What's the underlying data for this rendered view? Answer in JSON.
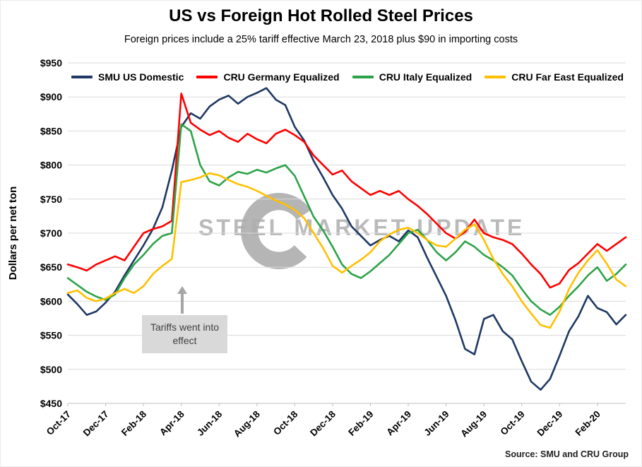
{
  "header": {
    "title": "US vs Foreign Hot Rolled Steel Prices",
    "subtitle": "Foreign prices include a 25% tariff effective March 23, 2018 plus $90 in importing costs"
  },
  "annotation": {
    "text": "Tariffs went into effect"
  },
  "watermark": {
    "text": "STEEL MARKET UPDATE",
    "logo": "crescent-globe-logo"
  },
  "source": {
    "text": "Source: SMU and CRU Group"
  },
  "chart_data": {
    "type": "line",
    "title": "US vs Foreign Hot Rolled Steel Prices",
    "ylabel": "Dollars per net ton",
    "xlabel": "",
    "ylim": [
      450,
      950
    ],
    "ytick_step": 50,
    "ytick_prefix": "$",
    "grid": "horizontal",
    "legend_position": "top-inside",
    "x_unit": "months since Oct-2017, sampled every half month",
    "x_start_month": 0,
    "x_step_months": 0.5,
    "x_end_month": 29.5,
    "xticks": [
      {
        "label": "Oct-17",
        "month": 0
      },
      {
        "label": "Dec-17",
        "month": 2
      },
      {
        "label": "Feb-18",
        "month": 4
      },
      {
        "label": "Apr-18",
        "month": 6
      },
      {
        "label": "Jun-18",
        "month": 8
      },
      {
        "label": "Aug-18",
        "month": 10
      },
      {
        "label": "Oct-18",
        "month": 12
      },
      {
        "label": "Dec-18",
        "month": 14
      },
      {
        "label": "Feb-19",
        "month": 16
      },
      {
        "label": "Apr-19",
        "month": 18
      },
      {
        "label": "Jun-19",
        "month": 20
      },
      {
        "label": "Aug-19",
        "month": 22
      },
      {
        "label": "Oct-19",
        "month": 24
      },
      {
        "label": "Dec-19",
        "month": 26
      },
      {
        "label": "Feb-20",
        "month": 28
      }
    ],
    "series": [
      {
        "name": "SMU US Domestic",
        "color": "#1F3864",
        "values": [
          610,
          596,
          580,
          585,
          598,
          614,
          638,
          660,
          682,
          706,
          738,
          792,
          856,
          876,
          868,
          886,
          896,
          902,
          890,
          900,
          906,
          913,
          896,
          888,
          856,
          836,
          806,
          782,
          756,
          736,
          710,
          696,
          682,
          690,
          696,
          688,
          704,
          694,
          664,
          636,
          608,
          572,
          530,
          522,
          574,
          580,
          556,
          544,
          512,
          482,
          470,
          486,
          520,
          556,
          578,
          608,
          590,
          584,
          566,
          580
        ]
      },
      {
        "name": "CRU Germany Equalized",
        "color": "#FF0000",
        "values": [
          654,
          650,
          645,
          654,
          660,
          666,
          660,
          680,
          700,
          706,
          710,
          718,
          905,
          862,
          852,
          844,
          850,
          840,
          834,
          846,
          838,
          832,
          846,
          852,
          844,
          834,
          814,
          800,
          786,
          792,
          776,
          766,
          756,
          762,
          756,
          762,
          750,
          740,
          728,
          714,
          700,
          692,
          702,
          720,
          700,
          694,
          690,
          684,
          670,
          654,
          640,
          620,
          626,
          646,
          656,
          670,
          684,
          674,
          684,
          694
        ]
      },
      {
        "name": "CRU Italy Equalized",
        "color": "#2DA349",
        "values": [
          634,
          624,
          614,
          607,
          602,
          610,
          634,
          654,
          668,
          684,
          696,
          700,
          860,
          850,
          800,
          776,
          770,
          782,
          790,
          787,
          793,
          789,
          795,
          800,
          784,
          754,
          724,
          704,
          680,
          654,
          640,
          634,
          644,
          656,
          668,
          684,
          700,
          705,
          690,
          672,
          660,
          672,
          688,
          680,
          668,
          660,
          650,
          638,
          618,
          600,
          588,
          580,
          592,
          608,
          622,
          638,
          650,
          630,
          640,
          654
        ]
      },
      {
        "name": "CRU Far East Equalized",
        "color": "#FFC000",
        "values": [
          612,
          616,
          605,
          600,
          604,
          612,
          618,
          612,
          622,
          640,
          652,
          662,
          775,
          778,
          782,
          788,
          785,
          778,
          772,
          768,
          762,
          755,
          748,
          742,
          734,
          722,
          700,
          678,
          652,
          642,
          652,
          661,
          672,
          688,
          698,
          705,
          708,
          700,
          690,
          682,
          680,
          692,
          705,
          713,
          690,
          662,
          640,
          622,
          600,
          582,
          565,
          561,
          585,
          618,
          642,
          660,
          675,
          655,
          632,
          622
        ]
      }
    ]
  }
}
